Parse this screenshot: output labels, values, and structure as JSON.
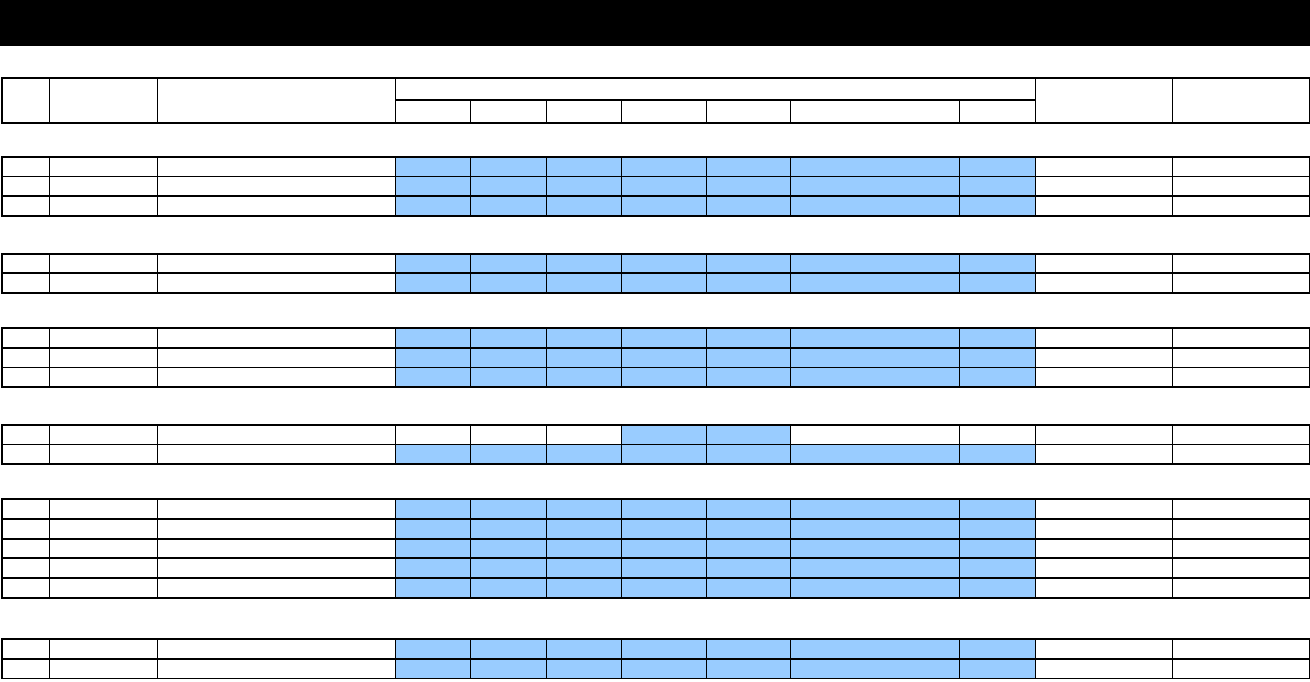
{
  "colors": {
    "highlight": "#99ccff",
    "border": "#000000",
    "title_bar": "#000000"
  },
  "header": {
    "leading_columns": 3,
    "grouped_subcolumns": 8,
    "trailing_columns": 2
  },
  "sections": [
    {
      "rows": [
        [
          1,
          1,
          1,
          1,
          1,
          1,
          1,
          1
        ],
        [
          1,
          1,
          1,
          1,
          1,
          1,
          1,
          1
        ],
        [
          1,
          1,
          1,
          1,
          1,
          1,
          1,
          1
        ]
      ]
    },
    {
      "rows": [
        [
          1,
          1,
          1,
          1,
          1,
          1,
          1,
          1
        ],
        [
          1,
          1,
          1,
          1,
          1,
          1,
          1,
          1
        ]
      ]
    },
    {
      "rows": [
        [
          1,
          1,
          1,
          1,
          1,
          1,
          1,
          1
        ],
        [
          1,
          1,
          1,
          1,
          1,
          1,
          1,
          1
        ],
        [
          1,
          1,
          1,
          1,
          1,
          1,
          1,
          1
        ]
      ]
    },
    {
      "rows": [
        [
          0,
          0,
          0,
          1,
          1,
          0,
          0,
          0
        ],
        [
          1,
          1,
          1,
          1,
          1,
          1,
          1,
          1
        ]
      ]
    },
    {
      "rows": [
        [
          1,
          1,
          1,
          1,
          1,
          1,
          1,
          1
        ],
        [
          1,
          1,
          1,
          1,
          1,
          1,
          1,
          1
        ],
        [
          1,
          1,
          1,
          1,
          1,
          1,
          1,
          1
        ],
        [
          1,
          1,
          1,
          1,
          1,
          1,
          1,
          1
        ],
        [
          1,
          1,
          1,
          1,
          1,
          1,
          1,
          1
        ]
      ]
    },
    {
      "rows": [
        [
          1,
          1,
          1,
          1,
          1,
          1,
          1,
          1
        ],
        [
          1,
          1,
          1,
          1,
          1,
          1,
          1,
          1
        ]
      ]
    }
  ]
}
